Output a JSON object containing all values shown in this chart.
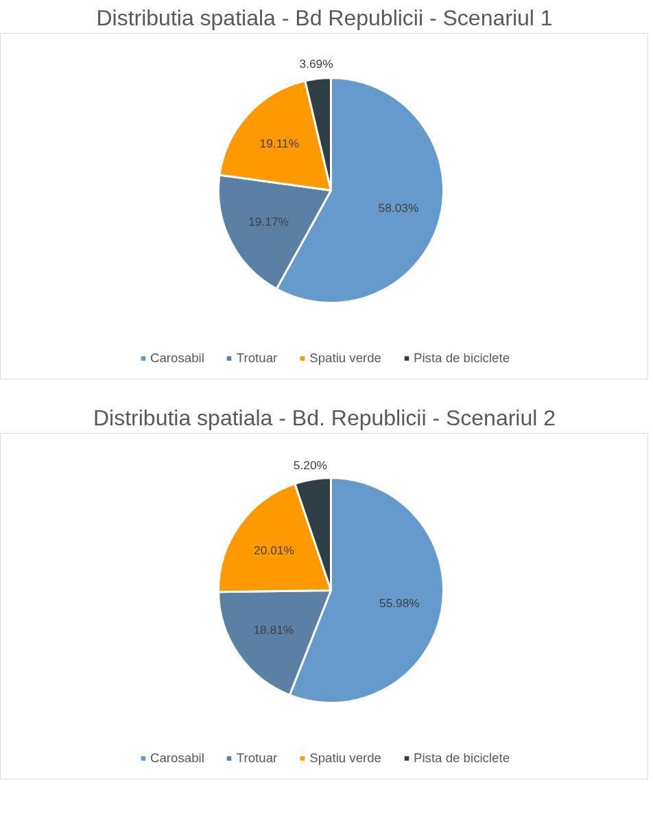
{
  "chart_data": [
    {
      "type": "pie",
      "title": "Distributia spatiala - Bd Republicii - Scenariul 1",
      "categories": [
        "Carosabil",
        "Trotuar",
        "Spatiu verde",
        "Pista de biciclete"
      ],
      "values": [
        58.03,
        19.17,
        19.11,
        3.69
      ],
      "colors": [
        "#6699cc",
        "#5b80a5",
        "#ff9900",
        "#2f3f45"
      ],
      "value_labels": [
        "58.03%",
        "19.17%",
        "19.11%",
        "3.69%"
      ],
      "legend": "bottom"
    },
    {
      "type": "pie",
      "title": "Distributia spatiala - Bd. Republicii - Scenariul 2",
      "categories": [
        "Carosabil",
        "Trotuar",
        "Spatiu verde",
        "Pista de biciclete"
      ],
      "values": [
        55.98,
        18.81,
        20.01,
        5.2
      ],
      "colors": [
        "#6699cc",
        "#5b80a5",
        "#ff9900",
        "#2f3f45"
      ],
      "value_labels": [
        "55.98%",
        "18.81%",
        "20.01%",
        "5.20%"
      ],
      "legend": "bottom"
    }
  ]
}
